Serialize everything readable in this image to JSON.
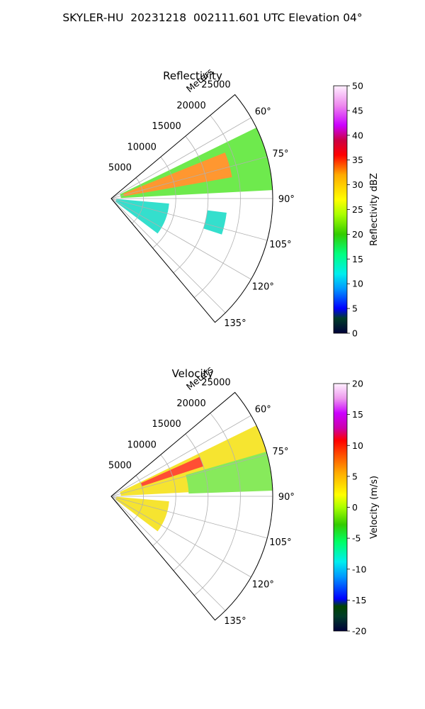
{
  "figure": {
    "title": "SKYLER-HU  20231218  002111.601 UTC Elevation 04°"
  },
  "colors": {
    "grid": "#b0b0b0",
    "axis": "#000000",
    "ref_echo_main": "#5fe83a",
    "ref_echo_core": "#ff8c1a",
    "ref_echo_weak": "#1fdcc8",
    "vel_echo_main": "#f5e21a",
    "vel_echo_approach": "#7be84a",
    "vel_echo_recede": "#ff3b1f"
  },
  "chart_data": [
    {
      "type": "heatmap",
      "projection": "polar-sector",
      "title": "Reflectivity",
      "range_label": "Meters",
      "range_ticks": [
        5000,
        10000,
        15000,
        20000,
        25000
      ],
      "range_lim": [
        0,
        25000
      ],
      "azimuth_ticks": [
        "60°",
        "75°",
        "90°",
        "105°",
        "120°",
        "135°"
      ],
      "azimuth_tick_values": [
        60,
        75,
        90,
        105,
        120,
        135
      ],
      "azimuth_lim": [
        50,
        140
      ],
      "grid": true,
      "colorbar": {
        "label": "Reflectivity dBZ",
        "range": [
          0,
          50
        ],
        "ticks": [
          0,
          5,
          10,
          15,
          20,
          25,
          30,
          35,
          40,
          45,
          50
        ]
      },
      "echoes": [
        {
          "az": [
            64,
            87
          ],
          "r": [
            1500,
            25000
          ],
          "value": 22
        },
        {
          "az": [
            68,
            80
          ],
          "r": [
            2000,
            19000
          ],
          "value": 30
        },
        {
          "az": [
            95,
            127
          ],
          "r": [
            800,
            9000
          ],
          "value": 10
        },
        {
          "az": [
            97,
            108
          ],
          "r": [
            15000,
            18000
          ],
          "value": 17
        }
      ]
    },
    {
      "type": "heatmap",
      "projection": "polar-sector",
      "title": "Velocity",
      "range_label": "Meters",
      "range_ticks": [
        5000,
        10000,
        15000,
        20000,
        25000
      ],
      "range_lim": [
        0,
        25000
      ],
      "azimuth_ticks": [
        "60°",
        "75°",
        "90°",
        "105°",
        "120°",
        "135°"
      ],
      "azimuth_tick_values": [
        60,
        75,
        90,
        105,
        120,
        135
      ],
      "azimuth_lim": [
        50,
        140
      ],
      "grid": true,
      "colorbar": {
        "label": "Velocity (m/s)",
        "range": [
          -20,
          20
        ],
        "ticks": [
          -20,
          -15,
          -10,
          -5,
          0,
          5,
          10,
          15,
          20
        ]
      },
      "echoes": [
        {
          "az": [
            64,
            87
          ],
          "r": [
            1500,
            25000
          ],
          "value": 0
        },
        {
          "az": [
            66,
            72
          ],
          "r": [
            5000,
            15000
          ],
          "value": 10
        },
        {
          "az": [
            74,
            88
          ],
          "r": [
            12000,
            25000
          ],
          "value": -4
        },
        {
          "az": [
            95,
            127
          ],
          "r": [
            800,
            9000
          ],
          "value": 4
        }
      ]
    }
  ]
}
